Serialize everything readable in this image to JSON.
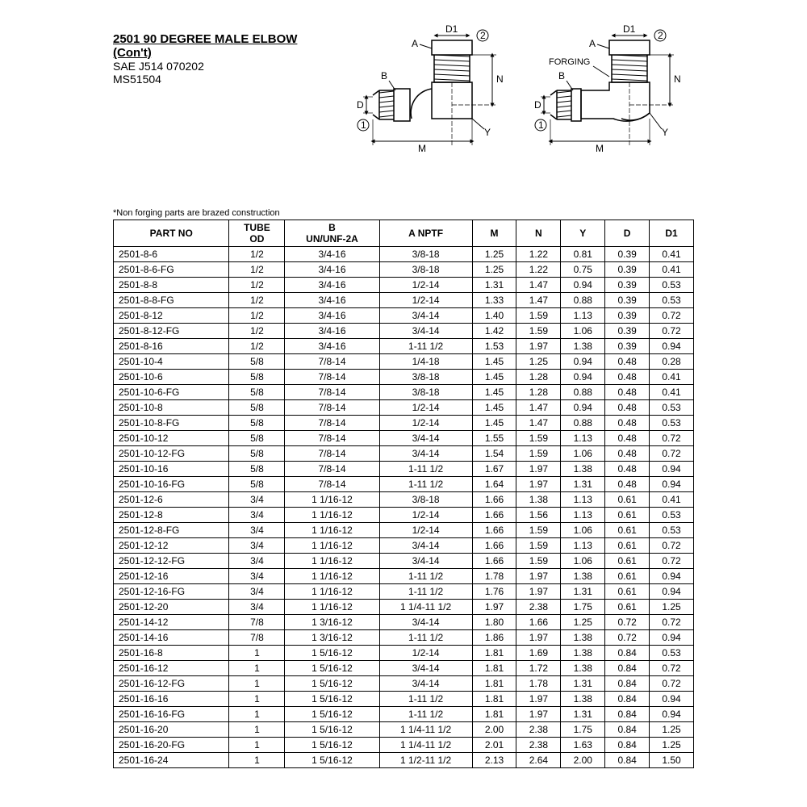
{
  "title": {
    "main": "2501 90 DEGREE MALE ELBOW",
    "cont": "(Con't)",
    "spec1": "SAE J514 070202",
    "spec2": "MS51504"
  },
  "note": "*Non forging parts are brazed construction",
  "diagrams": {
    "left": {
      "labels": {
        "A": "A",
        "B": "B",
        "D": "D",
        "D1": "D1",
        "M": "M",
        "N": "N",
        "Y": "Y",
        "c1": "1",
        "c2": "2"
      }
    },
    "right": {
      "labels": {
        "A": "A",
        "B": "B",
        "D": "D",
        "D1": "D1",
        "M": "M",
        "N": "N",
        "Y": "Y",
        "c1": "1",
        "c2": "2",
        "forging": "FORGING"
      }
    }
  },
  "table": {
    "columns": [
      "PART NO",
      "TUBE OD",
      "B UN/UNF-2A",
      "A NPTF",
      "M",
      "N",
      "Y",
      "D",
      "D1"
    ],
    "rows": [
      [
        "2501-8-6",
        "1/2",
        "3/4-16",
        "3/8-18",
        "1.25",
        "1.22",
        "0.81",
        "0.39",
        "0.41"
      ],
      [
        "2501-8-6-FG",
        "1/2",
        "3/4-16",
        "3/8-18",
        "1.25",
        "1.22",
        "0.75",
        "0.39",
        "0.41"
      ],
      [
        "2501-8-8",
        "1/2",
        "3/4-16",
        "1/2-14",
        "1.31",
        "1.47",
        "0.94",
        "0.39",
        "0.53"
      ],
      [
        "2501-8-8-FG",
        "1/2",
        "3/4-16",
        "1/2-14",
        "1.33",
        "1.47",
        "0.88",
        "0.39",
        "0.53"
      ],
      [
        "2501-8-12",
        "1/2",
        "3/4-16",
        "3/4-14",
        "1.40",
        "1.59",
        "1.13",
        "0.39",
        "0.72"
      ],
      [
        "2501-8-12-FG",
        "1/2",
        "3/4-16",
        "3/4-14",
        "1.42",
        "1.59",
        "1.06",
        "0.39",
        "0.72"
      ],
      [
        "2501-8-16",
        "1/2",
        "3/4-16",
        "1-11 1/2",
        "1.53",
        "1.97",
        "1.38",
        "0.39",
        "0.94"
      ],
      [
        "2501-10-4",
        "5/8",
        "7/8-14",
        "1/4-18",
        "1.45",
        "1.25",
        "0.94",
        "0.48",
        "0.28"
      ],
      [
        "2501-10-6",
        "5/8",
        "7/8-14",
        "3/8-18",
        "1.45",
        "1.28",
        "0.94",
        "0.48",
        "0.41"
      ],
      [
        "2501-10-6-FG",
        "5/8",
        "7/8-14",
        "3/8-18",
        "1.45",
        "1.28",
        "0.88",
        "0.48",
        "0.41"
      ],
      [
        "2501-10-8",
        "5/8",
        "7/8-14",
        "1/2-14",
        "1.45",
        "1.47",
        "0.94",
        "0.48",
        "0.53"
      ],
      [
        "2501-10-8-FG",
        "5/8",
        "7/8-14",
        "1/2-14",
        "1.45",
        "1.47",
        "0.88",
        "0.48",
        "0.53"
      ],
      [
        "2501-10-12",
        "5/8",
        "7/8-14",
        "3/4-14",
        "1.55",
        "1.59",
        "1.13",
        "0.48",
        "0.72"
      ],
      [
        "2501-10-12-FG",
        "5/8",
        "7/8-14",
        "3/4-14",
        "1.54",
        "1.59",
        "1.06",
        "0.48",
        "0.72"
      ],
      [
        "2501-10-16",
        "5/8",
        "7/8-14",
        "1-11 1/2",
        "1.67",
        "1.97",
        "1.38",
        "0.48",
        "0.94"
      ],
      [
        "2501-10-16-FG",
        "5/8",
        "7/8-14",
        "1-11 1/2",
        "1.64",
        "1.97",
        "1.31",
        "0.48",
        "0.94"
      ],
      [
        "2501-12-6",
        "3/4",
        "1 1/16-12",
        "3/8-18",
        "1.66",
        "1.38",
        "1.13",
        "0.61",
        "0.41"
      ],
      [
        "2501-12-8",
        "3/4",
        "1 1/16-12",
        "1/2-14",
        "1.66",
        "1.56",
        "1.13",
        "0.61",
        "0.53"
      ],
      [
        "2501-12-8-FG",
        "3/4",
        "1 1/16-12",
        "1/2-14",
        "1.66",
        "1.59",
        "1.06",
        "0.61",
        "0.53"
      ],
      [
        "2501-12-12",
        "3/4",
        "1 1/16-12",
        "3/4-14",
        "1.66",
        "1.59",
        "1.13",
        "0.61",
        "0.72"
      ],
      [
        "2501-12-12-FG",
        "3/4",
        "1 1/16-12",
        "3/4-14",
        "1.66",
        "1.59",
        "1.06",
        "0.61",
        "0.72"
      ],
      [
        "2501-12-16",
        "3/4",
        "1 1/16-12",
        "1-11 1/2",
        "1.78",
        "1.97",
        "1.38",
        "0.61",
        "0.94"
      ],
      [
        "2501-12-16-FG",
        "3/4",
        "1 1/16-12",
        "1-11 1/2",
        "1.76",
        "1.97",
        "1.31",
        "0.61",
        "0.94"
      ],
      [
        "2501-12-20",
        "3/4",
        "1 1/16-12",
        "1 1/4-11 1/2",
        "1.97",
        "2.38",
        "1.75",
        "0.61",
        "1.25"
      ],
      [
        "2501-14-12",
        "7/8",
        "1 3/16-12",
        "3/4-14",
        "1.80",
        "1.66",
        "1.25",
        "0.72",
        "0.72"
      ],
      [
        "2501-14-16",
        "7/8",
        "1 3/16-12",
        "1-11 1/2",
        "1.86",
        "1.97",
        "1.38",
        "0.72",
        "0.94"
      ],
      [
        "2501-16-8",
        "1",
        "1 5/16-12",
        "1/2-14",
        "1.81",
        "1.69",
        "1.38",
        "0.84",
        "0.53"
      ],
      [
        "2501-16-12",
        "1",
        "1 5/16-12",
        "3/4-14",
        "1.81",
        "1.72",
        "1.38",
        "0.84",
        "0.72"
      ],
      [
        "2501-16-12-FG",
        "1",
        "1 5/16-12",
        "3/4-14",
        "1.81",
        "1.78",
        "1.31",
        "0.84",
        "0.72"
      ],
      [
        "2501-16-16",
        "1",
        "1 5/16-12",
        "1-11 1/2",
        "1.81",
        "1.97",
        "1.38",
        "0.84",
        "0.94"
      ],
      [
        "2501-16-16-FG",
        "1",
        "1 5/16-12",
        "1-11 1/2",
        "1.81",
        "1.97",
        "1.31",
        "0.84",
        "0.94"
      ],
      [
        "2501-16-20",
        "1",
        "1 5/16-12",
        "1 1/4-11 1/2",
        "2.00",
        "2.38",
        "1.75",
        "0.84",
        "1.25"
      ],
      [
        "2501-16-20-FG",
        "1",
        "1 5/16-12",
        "1 1/4-11 1/2",
        "2.01",
        "2.38",
        "1.63",
        "0.84",
        "1.25"
      ],
      [
        "2501-16-24",
        "1",
        "1 5/16-12",
        "1 1/2-11 1/2",
        "2.13",
        "2.64",
        "2.00",
        "0.84",
        "1.50"
      ]
    ]
  }
}
